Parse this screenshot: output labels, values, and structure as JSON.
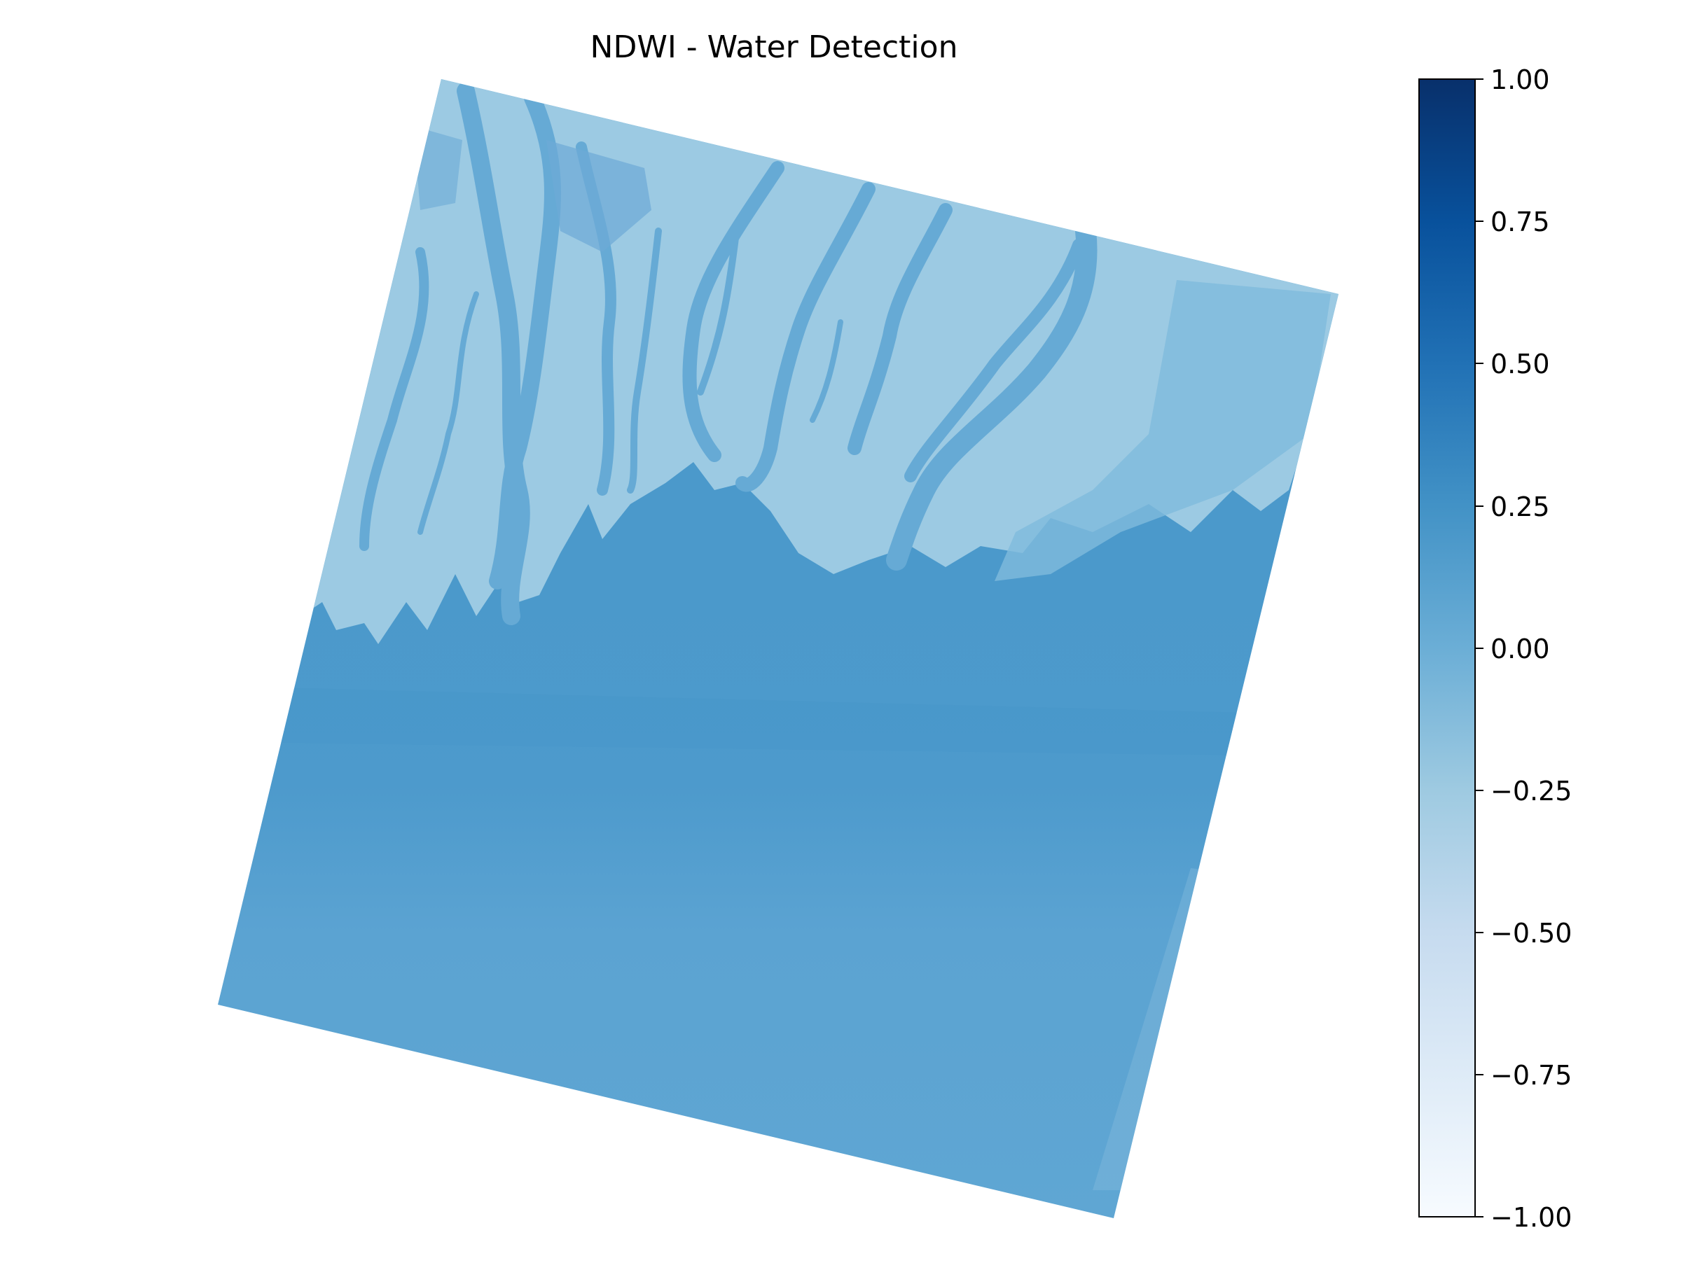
{
  "figure": {
    "title": "NDWI - Water Detection"
  },
  "image": {
    "subject": "NDWI raster of river delta coastline",
    "colormap": "Blues",
    "colors": {
      "land": "#9ecae1",
      "channel": "#6aaed6",
      "water_near": "#4a98ca",
      "water_far": "#5ea5d2",
      "sediment": "#8bbfdf"
    }
  },
  "colorbar": {
    "ticks": [
      "1.00",
      "0.75",
      "0.50",
      "0.25",
      "0.00",
      "−0.25",
      "−0.50",
      "−0.75",
      "−1.00"
    ],
    "range": [
      -1.0,
      1.0
    ],
    "colors": {
      "top": "#08306b",
      "upper": "#08519c",
      "mid_upper": "#2171b5",
      "mid": "#4292c6",
      "center": "#6baed6",
      "mid_lower": "#9ecae1",
      "lower": "#c6dbef",
      "bottom": "#f7fbff"
    }
  }
}
